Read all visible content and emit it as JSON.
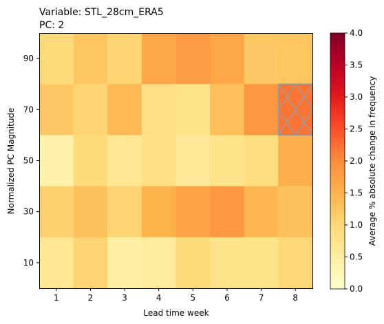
{
  "chart_data": {
    "type": "heatmap",
    "title_lines": [
      "Variable: STL_28cm_ERA5",
      "PC: 2"
    ],
    "xlabel": "Lead time week",
    "ylabel": "Normalized PC Magnitude",
    "x_categories": [
      "1",
      "2",
      "3",
      "4",
      "5",
      "6",
      "7",
      "8"
    ],
    "y_categories": [
      "90",
      "70",
      "50",
      "30",
      "10"
    ],
    "values": [
      [
        0.95,
        1.25,
        1.05,
        1.65,
        1.8,
        1.65,
        1.2,
        1.25
      ],
      [
        1.2,
        1.05,
        1.4,
        0.85,
        0.75,
        1.35,
        1.85,
        null
      ],
      [
        0.35,
        0.95,
        0.65,
        0.8,
        0.6,
        0.75,
        0.9,
        1.55
      ],
      [
        1.1,
        1.3,
        1.05,
        1.5,
        1.7,
        1.85,
        1.45,
        1.3
      ],
      [
        0.65,
        1.05,
        0.45,
        0.55,
        0.95,
        0.75,
        0.75,
        1.0
      ]
    ],
    "hatched_cells": [
      {
        "row": 1,
        "col": 7
      }
    ],
    "hatched_fill_value": 2.2,
    "colorbar": {
      "label": "Average % absolute change in frequency",
      "range": [
        0.0,
        4.0
      ],
      "ticks": [
        "0.0",
        "0.5",
        "1.0",
        "1.5",
        "2.0",
        "2.5",
        "3.0",
        "3.5",
        "4.0"
      ],
      "colormap": "YlOrRd"
    },
    "colors": {
      "hatch": "#999999"
    }
  }
}
